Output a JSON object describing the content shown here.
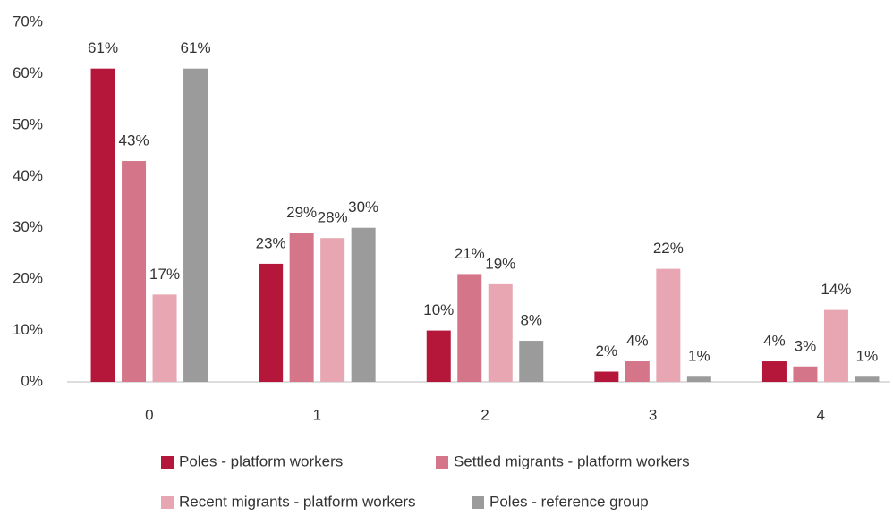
{
  "chart_data": {
    "type": "bar",
    "categories": [
      "0",
      "1",
      "2",
      "3",
      "4"
    ],
    "series": [
      {
        "name": "Poles - platform workers",
        "color": "#b5173a",
        "values": [
          61,
          23,
          10,
          2,
          4
        ],
        "value_labels": [
          "61%",
          "23%",
          "10%",
          "2%",
          "4%"
        ]
      },
      {
        "name": "Settled migrants - platform workers",
        "color": "#d4758a",
        "values": [
          43,
          29,
          21,
          4,
          3
        ],
        "value_labels": [
          "43%",
          "29%",
          "21%",
          "4%",
          "3%"
        ]
      },
      {
        "name": "Recent migrants - platform workers",
        "color": "#e8a6b2",
        "values": [
          17,
          28,
          19,
          22,
          14
        ],
        "value_labels": [
          "17%",
          "28%",
          "19%",
          "22%",
          "14%"
        ]
      },
      {
        "name": "Poles - reference group",
        "color": "#9b9b9b",
        "values": [
          61,
          30,
          8,
          1,
          1
        ],
        "value_labels": [
          "61%",
          "30%",
          "8%",
          "1%",
          "1%"
        ]
      }
    ],
    "ylim": [
      0,
      70
    ],
    "yticks": [
      {
        "value": 0,
        "label": "0%"
      },
      {
        "value": 10,
        "label": "10%"
      },
      {
        "value": 20,
        "label": "20%"
      },
      {
        "value": 30,
        "label": "30%"
      },
      {
        "value": 40,
        "label": "40%"
      },
      {
        "value": 50,
        "label": "50%"
      },
      {
        "value": 60,
        "label": "60%"
      },
      {
        "value": 70,
        "label": "70%"
      }
    ],
    "grid": false,
    "legend": "bottom"
  }
}
